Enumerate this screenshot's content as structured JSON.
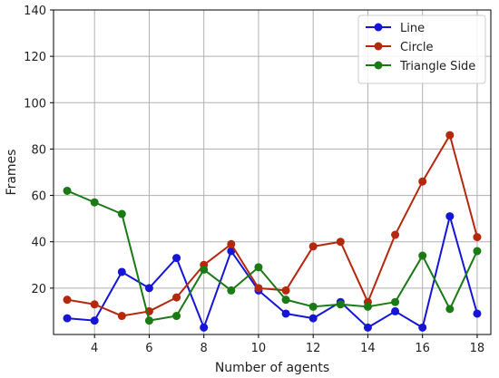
{
  "chart_data": {
    "type": "line",
    "xlabel": "Number of agents",
    "ylabel": "Frames",
    "xlim": [
      2.5,
      18.5
    ],
    "ylim": [
      0,
      140
    ],
    "xticks": [
      4,
      6,
      8,
      10,
      12,
      14,
      16,
      18
    ],
    "yticks": [
      20,
      40,
      60,
      80,
      100,
      120,
      140
    ],
    "grid": true,
    "legend_position": "top-right",
    "x": [
      3,
      4,
      5,
      6,
      7,
      8,
      9,
      10,
      11,
      12,
      13,
      14,
      15,
      16,
      17,
      18
    ],
    "series": [
      {
        "name": "Line",
        "color": "#1515d6",
        "values": [
          7,
          6,
          27,
          20,
          33,
          3,
          36,
          19,
          9,
          7,
          14,
          3,
          10,
          3,
          51,
          9
        ]
      },
      {
        "name": "Circle",
        "color": "#b5280e",
        "values": [
          15,
          13,
          8,
          10,
          16,
          30,
          39,
          20,
          19,
          38,
          40,
          14,
          43,
          66,
          86,
          42
        ]
      },
      {
        "name": "Triangle Side",
        "color": "#1a7a14",
        "values": [
          62,
          57,
          52,
          6,
          8,
          28,
          19,
          29,
          15,
          12,
          13,
          12,
          14,
          34,
          11,
          36
        ]
      }
    ]
  }
}
